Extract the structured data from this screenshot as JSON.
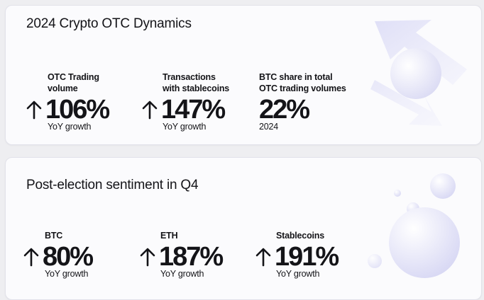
{
  "colors": {
    "background": "#eeeef1",
    "card": "#fbfbfd",
    "text": "#141418",
    "decoration": "#dcdcf6"
  },
  "section1": {
    "title": "2024 Crypto OTC Dynamics",
    "stats": [
      {
        "label_line1": "OTC Trading",
        "label_line2": "volume",
        "value": "106%",
        "note": "YoY growth",
        "icon": "arrow-up-icon"
      },
      {
        "label_line1": "Transactions",
        "label_line2": "with stablecoins",
        "value": "147%",
        "note": "YoY growth",
        "icon": "arrow-up-icon"
      },
      {
        "label_line1": "BTC share in total",
        "label_line2": "OTC trading volumes",
        "value": "22%",
        "note": "2024"
      }
    ]
  },
  "section2": {
    "title": "Post-election sentiment in Q4",
    "stats": [
      {
        "label": "BTC",
        "value": "80%",
        "note": "YoY growth",
        "icon": "arrow-up-icon"
      },
      {
        "label": "ETH",
        "value": "187%",
        "note": "YoY growth",
        "icon": "arrow-up-icon"
      },
      {
        "label": "Stablecoins",
        "value": "191%",
        "note": "YoY growth",
        "icon": "arrow-up-icon"
      }
    ]
  }
}
